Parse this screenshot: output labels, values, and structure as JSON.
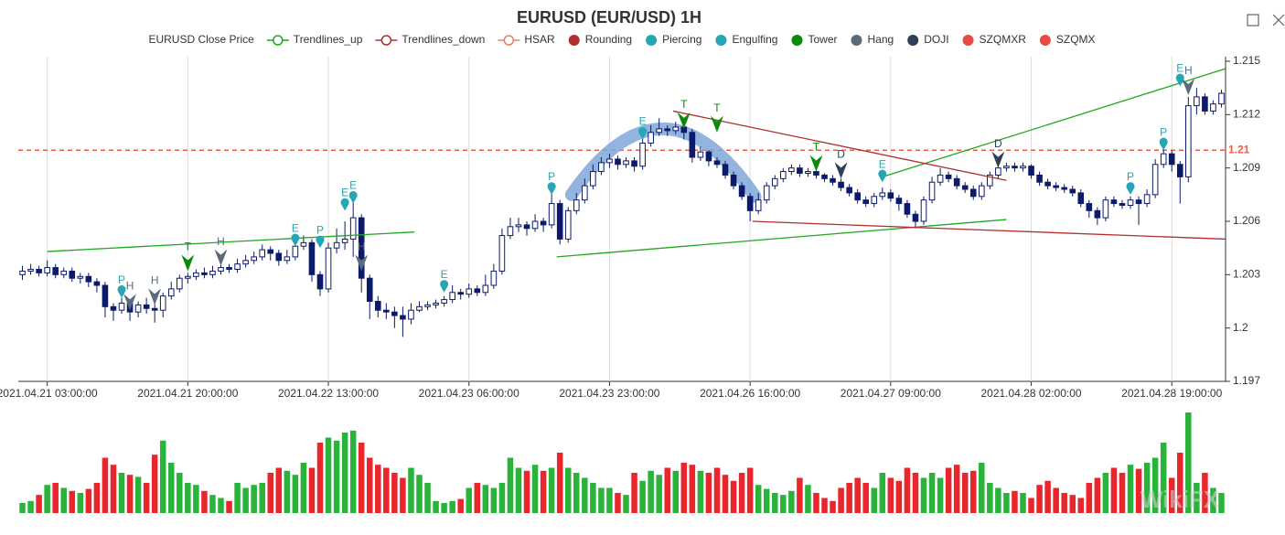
{
  "chart_data": {
    "type": "candlestick",
    "title": "EURUSD (EUR/USD) 1H",
    "watermark": "WikiFX",
    "legend": [
      {
        "name": "EURUSD Close Price",
        "color": "#0c1a6b",
        "icon": "none"
      },
      {
        "name": "Trendlines_up",
        "color": "#22a722",
        "icon": "line"
      },
      {
        "name": "Trendlines_down",
        "color": "#b03030",
        "icon": "line"
      },
      {
        "name": "HSAR",
        "color": "#f07a6a",
        "icon": "line"
      },
      {
        "name": "Rounding",
        "color": "#b03030",
        "icon": "dot"
      },
      {
        "name": "Piercing",
        "color": "#26a6b5",
        "icon": "dot"
      },
      {
        "name": "Engulfing",
        "color": "#26a6b5",
        "icon": "dot"
      },
      {
        "name": "Tower",
        "color": "#0a8a0a",
        "icon": "dot"
      },
      {
        "name": "Hang",
        "color": "#5a6b7b",
        "icon": "dot"
      },
      {
        "name": "DOJI",
        "color": "#2f3f55",
        "icon": "dot"
      },
      {
        "name": "SZQMXR",
        "color": "#ea4a40",
        "icon": "dot"
      },
      {
        "name": "SZQMX",
        "color": "#ea4a40",
        "icon": "dot"
      }
    ],
    "candle_color": "#0c1a6b",
    "volume_up_color": "#2ab33a",
    "volume_down_color": "#e8262b",
    "grid": true,
    "ylim": [
      1.197,
      1.215
    ],
    "yticks": [
      1.197,
      1.2,
      1.203,
      1.206,
      1.209,
      1.212,
      1.215
    ],
    "hsar": 1.21,
    "hsar_color": "#f25a4a",
    "categories": [
      null,
      null,
      null,
      "2021.04.21 03:00:00",
      null,
      null,
      null,
      null,
      null,
      null,
      null,
      null,
      null,
      null,
      null,
      null,
      null,
      null,
      null,
      null,
      "2021.04.21 20:00:00",
      null,
      null,
      null,
      null,
      null,
      null,
      null,
      null,
      null,
      null,
      null,
      null,
      null,
      null,
      null,
      null,
      "2021.04.22 13:00:00",
      null,
      null,
      null,
      null,
      null,
      null,
      null,
      null,
      null,
      null,
      null,
      null,
      null,
      null,
      null,
      null,
      "2021.04.23 06:00:00",
      null,
      null,
      null,
      null,
      null,
      null,
      null,
      null,
      null,
      null,
      null,
      null,
      null,
      null,
      null,
      null,
      "2021.04.23 23:00:00",
      null,
      null,
      null,
      null,
      null,
      null,
      null,
      null,
      null,
      null,
      null,
      null,
      null,
      null,
      null,
      null,
      "2021.04.26 16:00:00",
      null,
      null,
      null,
      null,
      null,
      null,
      null,
      null,
      null,
      null,
      null,
      null,
      null,
      null,
      null,
      null,
      "2021.04.27 09:00:00",
      null,
      null,
      null,
      null,
      null,
      null,
      null,
      null,
      null,
      null,
      null,
      null,
      null,
      null,
      null,
      null,
      "2021.04.28 02:00:00",
      null,
      null,
      null,
      null,
      null,
      null,
      null,
      null,
      null,
      null,
      null,
      null,
      null,
      null,
      null,
      null,
      "2021.04.28 19:00:00",
      null,
      null,
      null,
      null,
      null,
      null
    ],
    "open": [
      1.203,
      1.2032,
      1.2033,
      1.2031,
      1.2034,
      1.203,
      1.2032,
      1.2028,
      1.2029,
      1.2026,
      1.2024,
      1.2012,
      1.201,
      1.2014,
      1.2009,
      1.2013,
      1.2011,
      1.201,
      1.2018,
      1.2022,
      1.2028,
      1.2029,
      1.2031,
      1.203,
      1.2032,
      1.2034,
      1.2033,
      1.2036,
      1.2038,
      1.204,
      1.2044,
      1.2042,
      1.2038,
      1.204,
      1.2046,
      1.2048,
      1.203,
      1.2022,
      1.2045,
      1.2048,
      1.205,
      1.2062,
      1.2028,
      1.2015,
      1.201,
      1.2009,
      1.2007,
      1.2005,
      1.201,
      1.2012,
      1.2013,
      1.2014,
      1.2016,
      1.202,
      1.2019,
      1.2022,
      1.202,
      1.2024,
      1.2032,
      1.2052,
      1.2057,
      1.2058,
      1.2056,
      1.206,
      1.2058,
      1.207,
      1.205,
      1.2066,
      1.2072,
      1.208,
      1.2088,
      1.2093,
      1.2095,
      1.2092,
      1.2094,
      1.2091,
      1.2104,
      1.211,
      1.2112,
      1.2111,
      1.2113,
      1.211,
      1.2096,
      1.2099,
      1.2094,
      1.2092,
      1.2086,
      1.208,
      1.2074,
      1.2066,
      1.2072,
      1.208,
      1.2084,
      1.2088,
      1.209,
      1.2087,
      1.2088,
      1.2086,
      1.2084,
      1.2082,
      1.2079,
      1.2076,
      1.2072,
      1.207,
      1.2074,
      1.2076,
      1.2073,
      1.207,
      1.2064,
      1.206,
      1.2072,
      1.2082,
      1.2086,
      1.2084,
      1.208,
      1.2078,
      1.2074,
      1.208,
      1.2086,
      1.209,
      1.2091,
      1.209,
      1.2091,
      1.2086,
      1.2082,
      1.208,
      1.2079,
      1.2078,
      1.2076,
      1.207,
      1.2066,
      1.2062,
      1.2072,
      1.207,
      1.2069,
      1.2072,
      1.207,
      1.2075,
      1.2092,
      1.2098,
      1.2092,
      1.2085,
      1.2125,
      1.213,
      1.2122,
      1.2126
    ],
    "high": [
      1.2035,
      1.2036,
      1.2035,
      1.2038,
      1.2036,
      1.2034,
      1.2034,
      1.2031,
      1.2031,
      1.2028,
      1.2026,
      1.2014,
      1.2017,
      1.2016,
      1.2015,
      1.2017,
      1.2014,
      1.202,
      1.2026,
      1.203,
      1.2031,
      1.2033,
      1.2034,
      1.2035,
      1.2036,
      1.2036,
      1.2039,
      1.2041,
      1.2043,
      1.2047,
      1.2046,
      1.2044,
      1.2044,
      1.205,
      1.2052,
      1.205,
      1.2032,
      1.2048,
      1.2056,
      1.206,
      1.2072,
      1.2064,
      1.203,
      1.2018,
      1.2014,
      1.2012,
      1.2012,
      1.2014,
      1.2015,
      1.2015,
      1.2016,
      1.2018,
      1.2024,
      1.2022,
      1.2025,
      1.2024,
      1.203,
      1.2036,
      1.2056,
      1.2062,
      1.2062,
      1.206,
      1.2064,
      1.2062,
      1.2076,
      1.2072,
      1.2068,
      1.2076,
      1.2084,
      1.2092,
      1.2096,
      1.2098,
      1.2097,
      1.2096,
      1.2096,
      1.2108,
      1.2114,
      1.2118,
      1.2114,
      1.2116,
      1.2115,
      1.2112,
      1.2102,
      1.21,
      1.2096,
      1.2094,
      1.2088,
      1.2082,
      1.2076,
      1.2076,
      1.2082,
      1.2086,
      1.209,
      1.2092,
      1.2092,
      1.209,
      1.209,
      1.2087,
      1.2086,
      1.2084,
      1.2081,
      1.2078,
      1.2074,
      1.2076,
      1.2079,
      1.2078,
      1.2075,
      1.2072,
      1.2066,
      1.2074,
      1.2085,
      1.209,
      1.2088,
      1.2086,
      1.2082,
      1.208,
      1.2082,
      1.2088,
      1.2092,
      1.2093,
      1.2093,
      1.2093,
      1.2092,
      1.2088,
      1.2084,
      1.2082,
      1.2081,
      1.208,
      1.2078,
      1.2072,
      1.2068,
      1.2074,
      1.2074,
      1.2072,
      1.2074,
      1.2074,
      1.2078,
      1.2095,
      1.2102,
      1.21,
      1.2094,
      1.213,
      1.2135,
      1.2132,
      1.2128,
      1.2134
    ],
    "low": [
      1.2027,
      1.203,
      1.2029,
      1.2029,
      1.2028,
      1.2028,
      1.2026,
      1.2025,
      1.2023,
      1.202,
      1.2006,
      1.2004,
      1.2008,
      1.2004,
      1.2006,
      1.2008,
      1.2003,
      1.2006,
      1.2016,
      1.202,
      1.2025,
      1.2027,
      1.2028,
      1.2028,
      1.203,
      1.2031,
      1.2031,
      1.2034,
      1.2036,
      1.2038,
      1.2038,
      1.2035,
      1.2036,
      1.2038,
      1.2044,
      1.2026,
      1.2018,
      1.202,
      1.2042,
      1.2044,
      1.204,
      1.202,
      1.2005,
      1.2006,
      1.2005,
      1.2,
      1.1995,
      1.2002,
      1.2009,
      1.201,
      1.2011,
      1.2012,
      1.2014,
      1.2016,
      1.2017,
      1.2018,
      1.2018,
      1.2022,
      1.203,
      1.205,
      1.2054,
      1.2052,
      1.2054,
      1.2054,
      1.2056,
      1.2047,
      1.2048,
      1.2064,
      1.207,
      1.2078,
      1.2086,
      1.209,
      1.2089,
      1.209,
      1.2088,
      1.2089,
      1.2102,
      1.2108,
      1.2108,
      1.2109,
      1.2106,
      1.2093,
      1.2094,
      1.2091,
      1.209,
      1.2084,
      1.2078,
      1.2072,
      1.206,
      1.2064,
      1.207,
      1.2078,
      1.2082,
      1.2086,
      1.2085,
      1.2085,
      1.2084,
      1.2082,
      1.208,
      1.2077,
      1.2074,
      1.207,
      1.2068,
      1.2068,
      1.2072,
      1.2071,
      1.2066,
      1.2062,
      1.2056,
      1.2058,
      1.207,
      1.208,
      1.2082,
      1.2078,
      1.2076,
      1.2072,
      1.2072,
      1.2078,
      1.2084,
      1.2088,
      1.2088,
      1.2088,
      1.2084,
      1.208,
      1.2078,
      1.2077,
      1.2076,
      1.2074,
      1.2068,
      1.2062,
      1.2058,
      1.206,
      1.2068,
      1.2067,
      1.2067,
      1.2058,
      1.2068,
      1.2073,
      1.209,
      1.2088,
      1.207,
      1.2082,
      1.212,
      1.212,
      1.212,
      1.2124
    ],
    "close": [
      1.2032,
      1.2033,
      1.2031,
      1.2034,
      1.203,
      1.2032,
      1.2028,
      1.2029,
      1.2026,
      1.2024,
      1.2012,
      1.201,
      1.2014,
      1.2009,
      1.2013,
      1.2011,
      1.201,
      1.2018,
      1.2022,
      1.2028,
      1.2029,
      1.2031,
      1.203,
      1.2032,
      1.2034,
      1.2033,
      1.2036,
      1.2038,
      1.204,
      1.2044,
      1.2042,
      1.2038,
      1.204,
      1.2046,
      1.2048,
      1.203,
      1.2022,
      1.2045,
      1.2048,
      1.205,
      1.2062,
      1.2028,
      1.2015,
      1.201,
      1.2009,
      1.2007,
      1.2005,
      1.201,
      1.2012,
      1.2013,
      1.2014,
      1.2016,
      1.202,
      1.2019,
      1.2022,
      1.202,
      1.2024,
      1.2032,
      1.2052,
      1.2057,
      1.2058,
      1.2056,
      1.206,
      1.2058,
      1.207,
      1.205,
      1.2066,
      1.2072,
      1.208,
      1.2088,
      1.2093,
      1.2095,
      1.2092,
      1.2094,
      1.2091,
      1.2104,
      1.211,
      1.2112,
      1.2111,
      1.2113,
      1.211,
      1.2096,
      1.2099,
      1.2094,
      1.2092,
      1.2086,
      1.208,
      1.2074,
      1.2066,
      1.2072,
      1.208,
      1.2084,
      1.2088,
      1.209,
      1.2087,
      1.2088,
      1.2086,
      1.2084,
      1.2082,
      1.2079,
      1.2076,
      1.2072,
      1.207,
      1.2074,
      1.2076,
      1.2073,
      1.207,
      1.2064,
      1.206,
      1.2072,
      1.2082,
      1.2086,
      1.2084,
      1.208,
      1.2078,
      1.2074,
      1.208,
      1.2086,
      1.209,
      1.2091,
      1.209,
      1.2091,
      1.2086,
      1.2082,
      1.208,
      1.2079,
      1.2078,
      1.2076,
      1.207,
      1.2066,
      1.2062,
      1.2072,
      1.207,
      1.2069,
      1.2072,
      1.207,
      1.2075,
      1.2092,
      1.2098,
      1.2092,
      1.2085,
      1.2125,
      1.213,
      1.2122,
      1.2126,
      1.2132
    ],
    "volume": [
      10,
      12,
      18,
      28,
      30,
      25,
      22,
      20,
      24,
      30,
      55,
      48,
      40,
      38,
      36,
      30,
      58,
      72,
      50,
      40,
      30,
      28,
      22,
      18,
      15,
      12,
      30,
      25,
      28,
      30,
      40,
      45,
      42,
      38,
      50,
      45,
      70,
      75,
      72,
      80,
      82,
      70,
      55,
      48,
      45,
      40,
      35,
      45,
      38,
      30,
      12,
      10,
      12,
      14,
      25,
      30,
      28,
      25,
      30,
      55,
      45,
      42,
      48,
      42,
      45,
      60,
      45,
      40,
      35,
      30,
      25,
      25,
      20,
      18,
      40,
      32,
      42,
      38,
      45,
      42,
      50,
      48,
      42,
      40,
      45,
      38,
      32,
      40,
      45,
      28,
      24,
      20,
      18,
      22,
      35,
      28,
      20,
      15,
      12,
      25,
      30,
      35,
      30,
      25,
      40,
      35,
      32,
      45,
      40,
      35,
      40,
      35,
      45,
      48,
      40,
      42,
      50,
      30,
      25,
      20,
      22,
      20,
      15,
      28,
      32,
      25,
      20,
      18,
      15,
      30,
      35,
      40,
      45,
      40,
      48,
      44,
      50,
      55,
      70,
      35,
      60,
      100,
      30,
      40,
      25,
      20
    ],
    "trendlines_up": [
      {
        "from": [
          3,
          1.2043
        ],
        "to": [
          47.4,
          1.2054
        ]
      },
      {
        "from": [
          64.6,
          1.204
        ],
        "to": [
          119,
          1.2061
        ]
      },
      {
        "from": [
          104,
          1.2085
        ],
        "to": [
          145.6,
          1.2146
        ]
      }
    ],
    "trendlines_down": [
      {
        "from": [
          78.7,
          1.2122
        ],
        "to": [
          119,
          1.2083
        ]
      },
      {
        "from": [
          88.3,
          1.206
        ],
        "to": [
          145.5,
          1.205
        ]
      }
    ],
    "rounding": {
      "start": [
        66.4,
        1.2075
      ],
      "peak": [
        77.5,
        1.2112
      ],
      "end": [
        88.6,
        1.2074
      ],
      "color": "#7fa7d8"
    },
    "markers": [
      {
        "label": "P",
        "index": 12,
        "price": 1.2017,
        "color": "#26a6b5",
        "symbol": "pin"
      },
      {
        "label": "H",
        "index": 13,
        "price": 1.201,
        "color": "#5a6b7b",
        "symbol": "arrow"
      },
      {
        "label": "H",
        "index": 16,
        "price": 1.2013,
        "color": "#5a6b7b",
        "symbol": "arrow"
      },
      {
        "label": "T",
        "index": 20,
        "price": 1.2032,
        "color": "#0a8a0a",
        "symbol": "arrow"
      },
      {
        "label": "H",
        "index": 24,
        "price": 1.2035,
        "color": "#5a6b7b",
        "symbol": "arrow"
      },
      {
        "label": "E",
        "index": 33,
        "price": 1.2046,
        "color": "#26a6b5",
        "symbol": "pin"
      },
      {
        "label": "P",
        "index": 36,
        "price": 1.2045,
        "color": "#26a6b5",
        "symbol": "pin"
      },
      {
        "label": "E",
        "index": 39,
        "price": 1.2066,
        "color": "#26a6b5",
        "symbol": "pin"
      },
      {
        "label": "E",
        "index": 40,
        "price": 1.207,
        "color": "#26a6b5",
        "symbol": "pin"
      },
      {
        "label": "H",
        "index": 41,
        "price": 1.2032,
        "color": "#5a6b7b",
        "symbol": "arrow"
      },
      {
        "label": "E",
        "index": 51,
        "price": 1.202,
        "color": "#26a6b5",
        "symbol": "pin"
      },
      {
        "label": "P",
        "index": 64,
        "price": 1.2075,
        "color": "#26a6b5",
        "symbol": "pin"
      },
      {
        "label": "E",
        "index": 75,
        "price": 1.2106,
        "color": "#26a6b5",
        "symbol": "pin"
      },
      {
        "label": "T",
        "index": 80,
        "price": 1.2112,
        "color": "#0a8a0a",
        "symbol": "arrow"
      },
      {
        "label": "T",
        "index": 84,
        "price": 1.211,
        "color": "#0a8a0a",
        "symbol": "arrow"
      },
      {
        "label": "T",
        "index": 96,
        "price": 1.2088,
        "color": "#0a8a0a",
        "symbol": "arrow"
      },
      {
        "label": "D",
        "index": 99,
        "price": 1.2084,
        "color": "#2f3f55",
        "symbol": "arrow"
      },
      {
        "label": "E",
        "index": 104,
        "price": 1.2082,
        "color": "#26a6b5",
        "symbol": "pin"
      },
      {
        "label": "D",
        "index": 118,
        "price": 1.209,
        "color": "#2f3f55",
        "symbol": "arrow"
      },
      {
        "label": "P",
        "index": 134,
        "price": 1.2075,
        "color": "#26a6b5",
        "symbol": "pin"
      },
      {
        "label": "P",
        "index": 138,
        "price": 1.21,
        "color": "#26a6b5",
        "symbol": "pin"
      },
      {
        "label": "E",
        "index": 140,
        "price": 1.2136,
        "color": "#26a6b5",
        "symbol": "pin"
      },
      {
        "label": "H",
        "index": 141,
        "price": 1.2131,
        "color": "#5a6b7b",
        "symbol": "arrow"
      }
    ]
  }
}
